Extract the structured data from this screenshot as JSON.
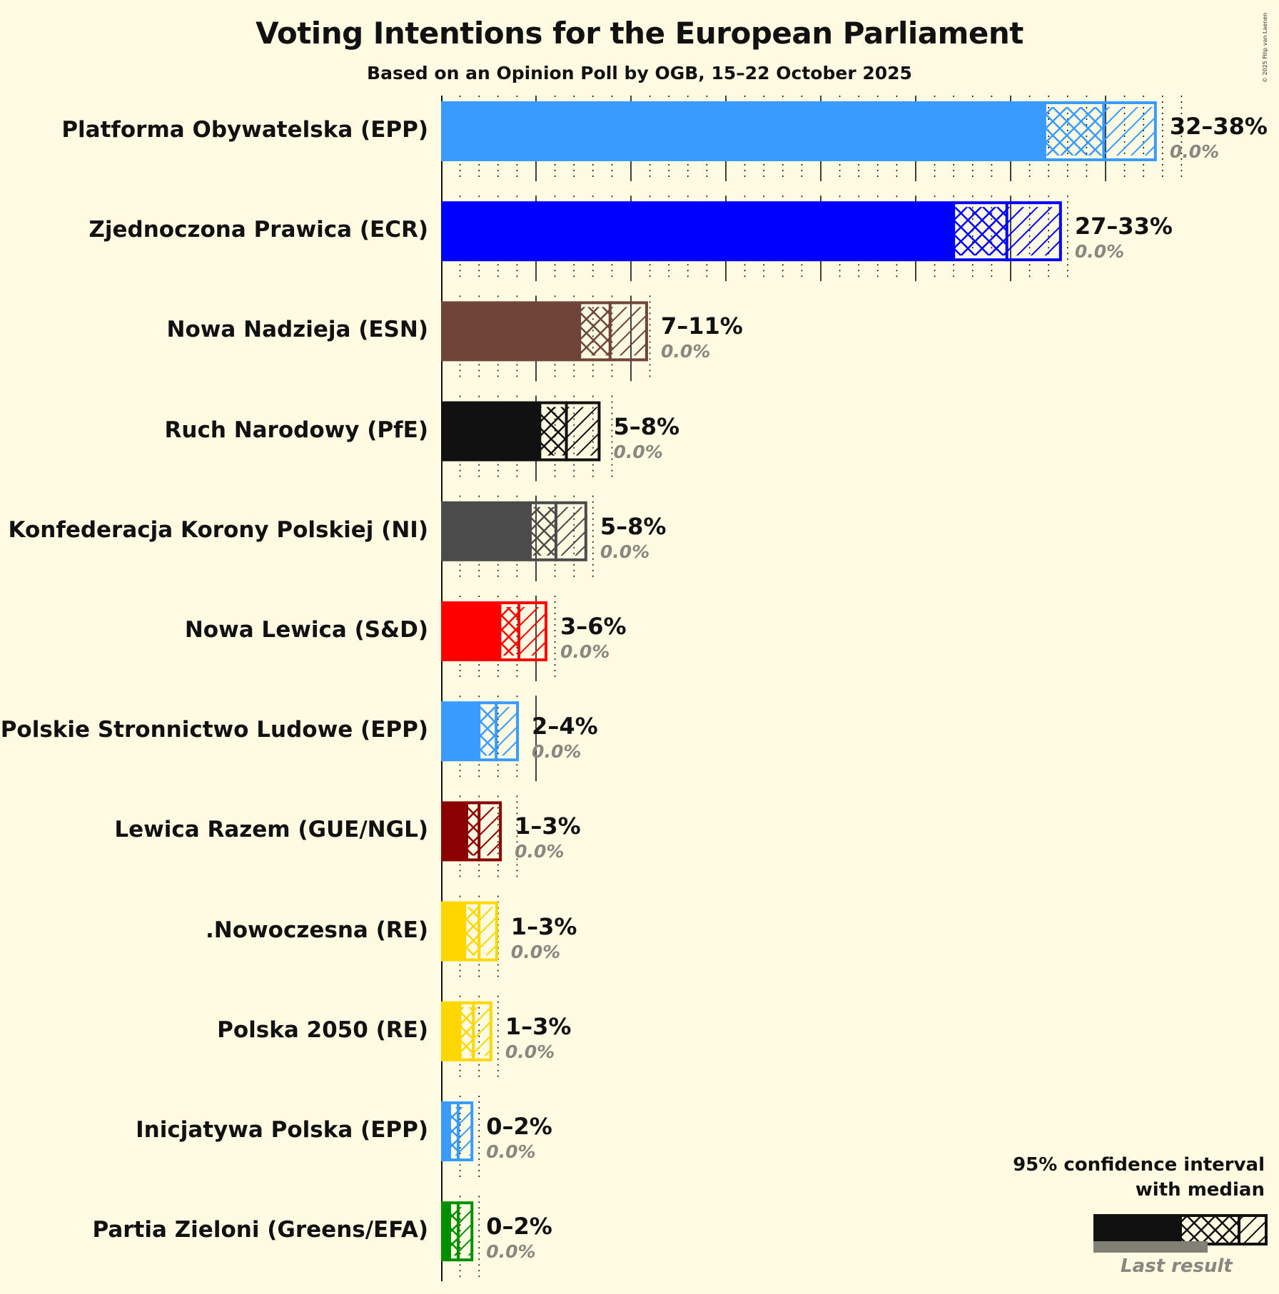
{
  "header": {
    "title": "Voting Intentions for the European Parliament",
    "subtitle": "Based on an Opinion Poll by OGB, 15–22 October 2025",
    "copyright": "© 2025 Filip van Laenen"
  },
  "legend": {
    "line1": "95% confidence interval",
    "line2": "with median",
    "last_result": "Last result"
  },
  "chart_data": {
    "type": "bar",
    "orientation": "horizontal",
    "title": "Voting Intentions for the European Parliament",
    "subtitle": "Based on an Opinion Poll by OGB, 15–22 October 2025",
    "xlabel": "",
    "ylabel": "",
    "xlim": [
      0,
      40
    ],
    "grid": {
      "major_step": 5,
      "minor_step": 1,
      "major_style": "solid",
      "minor_style": "dotted"
    },
    "legend": [
      "95% confidence interval with median",
      "Last result"
    ],
    "categories": [
      "Platforma Obywatelska (EPP)",
      "Zjednoczona Prawica (ECR)",
      "Nowa Nadzieja (ESN)",
      "Ruch Narodowy (PfE)",
      "Konfederacja Korony Polskiej (NI)",
      "Nowa Lewica (S&D)",
      "Polskie Stronnictwo Ludowe (EPP)",
      "Lewica Razem (GUE/NGL)",
      ".Nowoczesna (RE)",
      "Polska 2050 (RE)",
      "Inicjatywa Polska (EPP)",
      "Partia Zieloni (Greens/EFA)"
    ],
    "series": [
      {
        "name": "CI low",
        "values": [
          31.8,
          27.0,
          7.3,
          5.2,
          4.7,
          3.1,
          2.0,
          1.35,
          1.25,
          1.0,
          0.45,
          0.45
        ]
      },
      {
        "name": "Median",
        "values": [
          34.9,
          29.8,
          8.9,
          6.6,
          6.05,
          4.1,
          2.9,
          2.0,
          2.0,
          1.7,
          0.9,
          0.9
        ]
      },
      {
        "name": "CI high",
        "values": [
          37.7,
          32.7,
          10.9,
          8.4,
          7.7,
          5.6,
          4.1,
          3.2,
          3.0,
          2.7,
          1.7,
          1.7
        ]
      },
      {
        "name": "Last result",
        "values": [
          0.0,
          0.0,
          0.0,
          0.0,
          0.0,
          0.0,
          0.0,
          0.0,
          0.0,
          0.0,
          0.0,
          0.0
        ]
      }
    ],
    "parties": [
      {
        "name": "Platforma Obywatelska (EPP)",
        "range": "32–38%",
        "last": "0.0%",
        "low": 31.8,
        "median": 34.9,
        "high": 37.7,
        "color": "#3a9bff"
      },
      {
        "name": "Zjednoczona Prawica (ECR)",
        "range": "27–33%",
        "last": "0.0%",
        "low": 27.0,
        "median": 29.8,
        "high": 32.7,
        "color": "#0000ff"
      },
      {
        "name": "Nowa Nadzieja (ESN)",
        "range": "7–11%",
        "last": "0.0%",
        "low": 7.3,
        "median": 8.9,
        "high": 10.9,
        "color": "#6f453a"
      },
      {
        "name": "Ruch Narodowy (PfE)",
        "range": "5–8%",
        "last": "0.0%",
        "low": 5.2,
        "median": 6.6,
        "high": 8.4,
        "color": "#111111"
      },
      {
        "name": "Konfederacja Korony Polskiej (NI)",
        "range": "5–8%",
        "last": "0.0%",
        "low": 4.7,
        "median": 6.05,
        "high": 7.7,
        "color": "#4b4b4b"
      },
      {
        "name": "Nowa Lewica (S&D)",
        "range": "3–6%",
        "last": "0.0%",
        "low": 3.1,
        "median": 4.1,
        "high": 5.6,
        "color": "#ff0000"
      },
      {
        "name": "Polskie Stronnictwo Ludowe (EPP)",
        "range": "2–4%",
        "last": "0.0%",
        "low": 2.0,
        "median": 2.9,
        "high": 4.1,
        "color": "#3a9bff"
      },
      {
        "name": "Lewica Razem (GUE/NGL)",
        "range": "1–3%",
        "last": "0.0%",
        "low": 1.35,
        "median": 2.0,
        "high": 3.2,
        "color": "#8b0000"
      },
      {
        "name": ".Nowoczesna (RE)",
        "range": "1–3%",
        "last": "0.0%",
        "low": 1.25,
        "median": 2.0,
        "high": 3.0,
        "color": "#ffd700"
      },
      {
        "name": "Polska 2050 (RE)",
        "range": "1–3%",
        "last": "0.0%",
        "low": 1.0,
        "median": 1.7,
        "high": 2.7,
        "color": "#ffd700"
      },
      {
        "name": "Inicjatywa Polska (EPP)",
        "range": "0–2%",
        "last": "0.0%",
        "low": 0.45,
        "median": 0.9,
        "high": 1.7,
        "color": "#3a9bff"
      },
      {
        "name": "Partia Zieloni (Greens/EFA)",
        "range": "0–2%",
        "last": "0.0%",
        "low": 0.45,
        "median": 0.9,
        "high": 1.7,
        "color": "#009000"
      }
    ]
  }
}
